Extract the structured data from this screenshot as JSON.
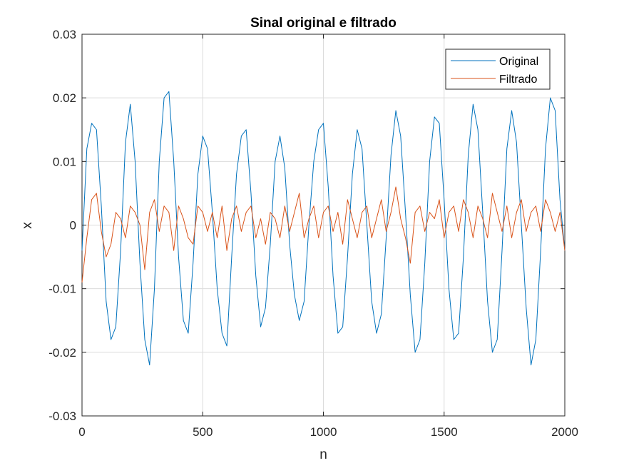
{
  "chart_data": {
    "type": "line",
    "title": "Sinal original e filtrado",
    "xlabel": "n",
    "ylabel": "x",
    "xlim": [
      0,
      2000
    ],
    "ylim": [
      -0.03,
      0.03
    ],
    "xticks": [
      0,
      500,
      1000,
      1500,
      2000
    ],
    "xtick_labels": [
      "0",
      "500",
      "1000",
      "1500",
      "2000"
    ],
    "yticks": [
      -0.03,
      -0.02,
      -0.01,
      0,
      0.01,
      0.02,
      0.03
    ],
    "ytick_labels": [
      "-0.03",
      "-0.02",
      "-0.01",
      "0",
      "0.01",
      "0.02",
      "0.03"
    ],
    "grid": true,
    "legend_position": "top-right",
    "series": [
      {
        "name": "Original",
        "color": "#0072BD",
        "x": [
          0,
          20,
          40,
          60,
          80,
          100,
          120,
          140,
          160,
          180,
          200,
          220,
          240,
          260,
          280,
          300,
          320,
          340,
          360,
          380,
          400,
          420,
          440,
          460,
          480,
          500,
          520,
          540,
          560,
          580,
          600,
          620,
          640,
          660,
          680,
          700,
          720,
          740,
          760,
          780,
          800,
          820,
          840,
          860,
          880,
          900,
          920,
          940,
          960,
          980,
          1000,
          1020,
          1040,
          1060,
          1080,
          1100,
          1120,
          1140,
          1160,
          1180,
          1200,
          1220,
          1240,
          1260,
          1280,
          1300,
          1320,
          1340,
          1360,
          1380,
          1400,
          1420,
          1440,
          1460,
          1480,
          1500,
          1520,
          1540,
          1560,
          1580,
          1600,
          1620,
          1640,
          1660,
          1680,
          1700,
          1720,
          1740,
          1760,
          1780,
          1800,
          1820,
          1840,
          1860,
          1880,
          1900,
          1920,
          1940,
          1960,
          1980,
          2000
        ],
        "y": [
          -0.004,
          0.012,
          0.016,
          0.015,
          0.003,
          -0.012,
          -0.018,
          -0.016,
          -0.004,
          0.013,
          0.019,
          0.01,
          -0.006,
          -0.018,
          -0.022,
          -0.01,
          0.01,
          0.02,
          0.021,
          0.01,
          -0.005,
          -0.015,
          -0.017,
          -0.006,
          0.008,
          0.014,
          0.012,
          0.002,
          -0.01,
          -0.017,
          -0.019,
          -0.005,
          0.008,
          0.014,
          0.015,
          0.005,
          -0.008,
          -0.016,
          -0.013,
          -0.003,
          0.01,
          0.014,
          0.009,
          -0.003,
          -0.011,
          -0.015,
          -0.012,
          0.0,
          0.01,
          0.015,
          0.016,
          0.006,
          -0.008,
          -0.017,
          -0.016,
          -0.005,
          0.008,
          0.015,
          0.012,
          0.0,
          -0.012,
          -0.017,
          -0.014,
          -0.002,
          0.011,
          0.018,
          0.014,
          0.002,
          -0.011,
          -0.02,
          -0.018,
          -0.006,
          0.01,
          0.017,
          0.016,
          0.004,
          -0.01,
          -0.018,
          -0.017,
          -0.005,
          0.011,
          0.019,
          0.015,
          0.002,
          -0.012,
          -0.02,
          -0.018,
          -0.004,
          0.012,
          0.018,
          0.013,
          0.0,
          -0.013,
          -0.022,
          -0.018,
          -0.004,
          0.012,
          0.02,
          0.018,
          0.004,
          -0.004
        ]
      },
      {
        "name": "Filtrado",
        "color": "#D95319",
        "x": [
          0,
          20,
          40,
          60,
          80,
          100,
          120,
          140,
          160,
          180,
          200,
          220,
          240,
          260,
          280,
          300,
          320,
          340,
          360,
          380,
          400,
          420,
          440,
          460,
          480,
          500,
          520,
          540,
          560,
          580,
          600,
          620,
          640,
          660,
          680,
          700,
          720,
          740,
          760,
          780,
          800,
          820,
          840,
          860,
          880,
          900,
          920,
          940,
          960,
          980,
          1000,
          1020,
          1040,
          1060,
          1080,
          1100,
          1120,
          1140,
          1160,
          1180,
          1200,
          1220,
          1240,
          1260,
          1280,
          1300,
          1320,
          1340,
          1360,
          1380,
          1400,
          1420,
          1440,
          1460,
          1480,
          1500,
          1520,
          1540,
          1560,
          1580,
          1600,
          1620,
          1640,
          1660,
          1680,
          1700,
          1720,
          1740,
          1760,
          1780,
          1800,
          1820,
          1840,
          1860,
          1880,
          1900,
          1920,
          1940,
          1960,
          1980,
          2000
        ],
        "y": [
          -0.009,
          -0.002,
          0.004,
          0.005,
          -0.001,
          -0.005,
          -0.003,
          0.002,
          0.001,
          -0.002,
          0.003,
          0.002,
          0.0,
          -0.007,
          0.002,
          0.004,
          -0.001,
          0.003,
          0.002,
          -0.004,
          0.003,
          0.001,
          -0.002,
          -0.003,
          0.003,
          0.002,
          -0.001,
          0.002,
          -0.002,
          0.003,
          -0.004,
          0.001,
          0.003,
          -0.001,
          0.002,
          0.003,
          -0.002,
          0.001,
          -0.003,
          0.002,
          0.001,
          -0.002,
          0.003,
          -0.001,
          0.002,
          0.005,
          -0.002,
          0.001,
          0.003,
          -0.002,
          0.002,
          0.003,
          -0.001,
          0.002,
          -0.003,
          0.004,
          0.001,
          -0.002,
          0.002,
          0.003,
          -0.002,
          0.001,
          0.004,
          -0.001,
          0.002,
          0.006,
          0.001,
          -0.002,
          -0.006,
          0.002,
          0.003,
          -0.001,
          0.002,
          0.001,
          0.004,
          -0.002,
          0.002,
          0.003,
          -0.001,
          0.004,
          0.002,
          -0.002,
          0.003,
          0.001,
          -0.002,
          0.005,
          0.002,
          -0.001,
          0.003,
          -0.002,
          0.002,
          0.004,
          -0.001,
          0.002,
          0.003,
          -0.001,
          0.004,
          0.002,
          -0.001,
          0.002,
          -0.004
        ]
      }
    ]
  }
}
